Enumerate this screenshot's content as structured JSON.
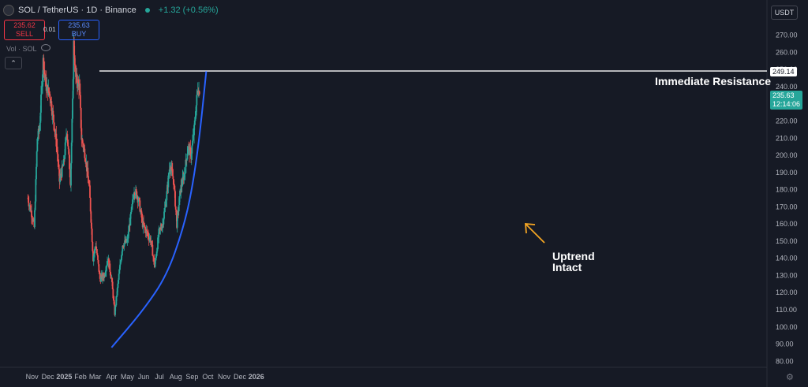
{
  "header": {
    "symbol": "SOL / TetherUS · 1D · Binance",
    "change": "+1.32 (+0.56%)",
    "sell_price": "235.62",
    "sell_label": "SELL",
    "buy_price": "235.63",
    "buy_label": "BUY",
    "spread": "0.01",
    "volume_label": "Vol · SOL",
    "collapse_glyph": "⌃"
  },
  "price_scale": {
    "currency": "USDT",
    "resistance_price": "249.14",
    "current_price": "235.63",
    "countdown": "12:14:06",
    "settings_icon": "gear-icon"
  },
  "annotations": {
    "resistance_text": "Immediate Resistance",
    "uptrend_line1": "Uptrend",
    "uptrend_line2": "Intact"
  },
  "colors": {
    "background": "#161a25",
    "up": "#26a69a",
    "down": "#ef5350",
    "trendline": "#2962ff",
    "resistance": "#ffffff",
    "arrow": "#f5a623"
  },
  "chart_data": {
    "type": "candlestick",
    "title": "SOL / TetherUS · 1D · Binance",
    "x_ticks": [
      "Nov",
      "Dec",
      "2025",
      "Feb",
      "Mar",
      "Apr",
      "May",
      "Jun",
      "Jul",
      "Aug",
      "Sep",
      "Oct",
      "Nov",
      "Dec",
      "2026"
    ],
    "y_ticks": [
      80,
      90,
      100,
      110,
      120,
      130,
      140,
      150,
      160,
      170,
      180,
      190,
      200,
      210,
      220,
      230,
      240,
      250,
      260,
      270
    ],
    "ylim": [
      76,
      285
    ],
    "resistance_level": 249.14,
    "last_price": 235.63,
    "close_path": [
      [
        "2024-10-24",
        175
      ],
      [
        "2024-11-01",
        165
      ],
      [
        "2024-11-05",
        158
      ],
      [
        "2024-11-11",
        210
      ],
      [
        "2024-11-15",
        215
      ],
      [
        "2024-11-22",
        255
      ],
      [
        "2024-11-28",
        240
      ],
      [
        "2024-12-05",
        235
      ],
      [
        "2024-12-12",
        220
      ],
      [
        "2024-12-18",
        205
      ],
      [
        "2024-12-23",
        185
      ],
      [
        "2024-12-31",
        195
      ],
      [
        "2025-01-06",
        215
      ],
      [
        "2025-01-13",
        185
      ],
      [
        "2025-01-17",
        230
      ],
      [
        "2025-01-19",
        265
      ],
      [
        "2025-01-23",
        245
      ],
      [
        "2025-01-30",
        240
      ],
      [
        "2025-02-03",
        210
      ],
      [
        "2025-02-10",
        200
      ],
      [
        "2025-02-18",
        180
      ],
      [
        "2025-02-25",
        140
      ],
      [
        "2025-03-02",
        148
      ],
      [
        "2025-03-10",
        128
      ],
      [
        "2025-03-18",
        130
      ],
      [
        "2025-03-25",
        140
      ],
      [
        "2025-04-01",
        128
      ],
      [
        "2025-04-07",
        108
      ],
      [
        "2025-04-15",
        130
      ],
      [
        "2025-04-22",
        148
      ],
      [
        "2025-05-01",
        150
      ],
      [
        "2025-05-10",
        170
      ],
      [
        "2025-05-14",
        180
      ],
      [
        "2025-05-22",
        175
      ],
      [
        "2025-05-30",
        160
      ],
      [
        "2025-06-07",
        155
      ],
      [
        "2025-06-15",
        150
      ],
      [
        "2025-06-22",
        135
      ],
      [
        "2025-06-30",
        155
      ],
      [
        "2025-07-07",
        160
      ],
      [
        "2025-07-14",
        175
      ],
      [
        "2025-07-21",
        195
      ],
      [
        "2025-07-28",
        185
      ],
      [
        "2025-08-03",
        160
      ],
      [
        "2025-08-10",
        180
      ],
      [
        "2025-08-18",
        190
      ],
      [
        "2025-08-24",
        205
      ],
      [
        "2025-08-30",
        200
      ],
      [
        "2025-09-05",
        215
      ],
      [
        "2025-09-12",
        240
      ],
      [
        "2025-09-15",
        235.63
      ]
    ],
    "uptrend_curve": [
      [
        "2025-04-01",
        88
      ],
      [
        "2025-06-01",
        110
      ],
      [
        "2025-07-15",
        130
      ],
      [
        "2025-08-15",
        157
      ],
      [
        "2025-09-01",
        180
      ],
      [
        "2025-09-15",
        210
      ],
      [
        "2025-09-28",
        249
      ]
    ]
  }
}
